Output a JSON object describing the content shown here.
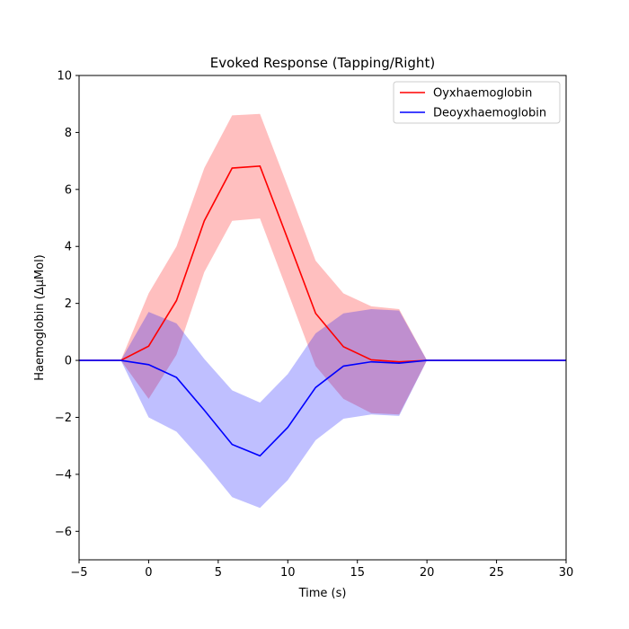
{
  "chart_data": {
    "type": "line",
    "title": "Evoked Response (Tapping/Right)",
    "xlabel": "Time (s)",
    "ylabel": "Haemoglobin (ΔµMol)",
    "xlim": [
      -5,
      30
    ],
    "ylim": [
      -7,
      10
    ],
    "xticks": [
      -5,
      0,
      5,
      10,
      15,
      20,
      25,
      30
    ],
    "yticks": [
      -6,
      -4,
      -2,
      0,
      2,
      4,
      6,
      8,
      10
    ],
    "grid": false,
    "legend_position": "top-right",
    "series": [
      {
        "name": "Oyxhaemoglobin",
        "color": "#ff0000",
        "band_color": "#ff0000",
        "x": [
          -5,
          -2,
          0,
          2,
          4,
          6,
          8,
          10,
          12,
          14,
          16,
          18,
          20,
          30
        ],
        "y": [
          0,
          0,
          0.5,
          2.1,
          4.9,
          6.75,
          6.82,
          4.25,
          1.65,
          0.48,
          0.02,
          -0.05,
          0,
          0
        ],
        "upper": [
          0,
          0,
          2.35,
          4.0,
          6.75,
          8.6,
          8.65,
          6.1,
          3.5,
          2.35,
          1.9,
          1.8,
          0,
          0
        ],
        "lower": [
          0,
          0,
          -1.35,
          0.2,
          3.1,
          4.9,
          4.98,
          2.4,
          -0.2,
          -1.35,
          -1.85,
          -1.9,
          0,
          0
        ]
      },
      {
        "name": "Deoyxhaemoglobin",
        "color": "#0000ff",
        "band_color": "#0000ff",
        "x": [
          -5,
          -2,
          0,
          2,
          4,
          6,
          8,
          10,
          12,
          14,
          16,
          18,
          20,
          30
        ],
        "y": [
          0,
          0,
          -0.15,
          -0.6,
          -1.75,
          -2.95,
          -3.35,
          -2.35,
          -0.95,
          -0.2,
          -0.05,
          -0.1,
          0,
          0
        ],
        "upper": [
          0,
          0,
          1.7,
          1.3,
          0.05,
          -1.05,
          -1.48,
          -0.48,
          0.95,
          1.65,
          1.8,
          1.75,
          0,
          0
        ],
        "lower": [
          0,
          0,
          -2.0,
          -2.5,
          -3.6,
          -4.8,
          -5.18,
          -4.2,
          -2.8,
          -2.05,
          -1.9,
          -1.95,
          0,
          0
        ]
      }
    ]
  }
}
